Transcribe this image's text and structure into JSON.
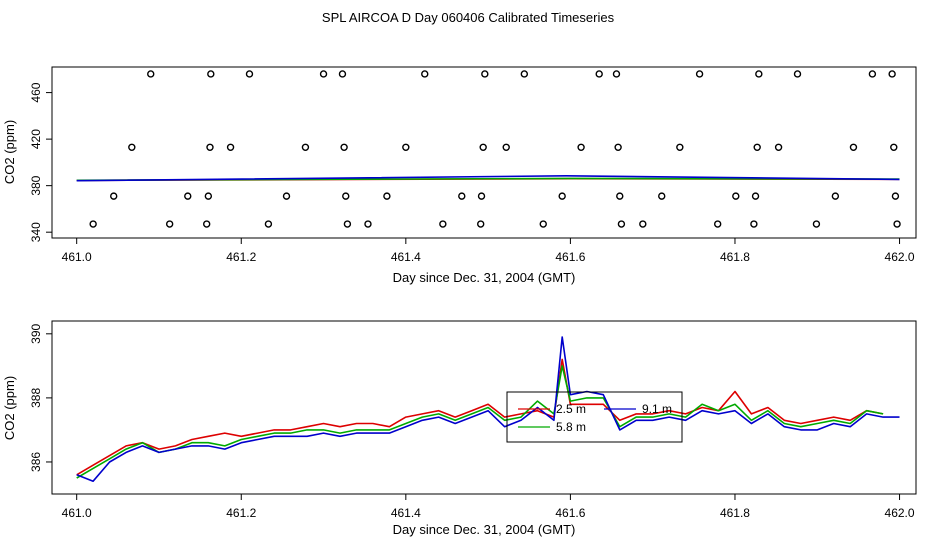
{
  "title": "SPL AIRCOA D  Day 060406  Calibrated Timeseries",
  "chart_data": [
    {
      "type": "scatter",
      "xlabel": "Day since Dec. 31, 2004 (GMT)",
      "ylabel": "CO2 (ppm)",
      "xlim": [
        460.97,
        462.02
      ],
      "ylim": [
        335,
        482
      ],
      "xticks": [
        461.0,
        461.2,
        461.4,
        461.6,
        461.8,
        462.0
      ],
      "xtick_labels": [
        "461.0",
        "461.2",
        "461.4",
        "461.6",
        "461.8",
        "462.0"
      ],
      "yticks": [
        340,
        380,
        420,
        460
      ],
      "ytick_labels": [
        "340",
        "380",
        "420",
        "460"
      ],
      "points": [
        [
          461.02,
          347
        ],
        [
          461.045,
          371
        ],
        [
          461.067,
          413
        ],
        [
          461.09,
          476
        ],
        [
          461.113,
          347
        ],
        [
          461.135,
          371
        ],
        [
          461.158,
          347
        ],
        [
          461.16,
          371
        ],
        [
          461.162,
          413
        ],
        [
          461.163,
          476
        ],
        [
          461.187,
          413
        ],
        [
          461.21,
          476
        ],
        [
          461.233,
          347
        ],
        [
          461.255,
          371
        ],
        [
          461.278,
          413
        ],
        [
          461.3,
          476
        ],
        [
          461.323,
          476
        ],
        [
          461.325,
          413
        ],
        [
          461.327,
          371
        ],
        [
          461.329,
          347
        ],
        [
          461.354,
          347
        ],
        [
          461.377,
          371
        ],
        [
          461.4,
          413
        ],
        [
          461.423,
          476
        ],
        [
          461.445,
          347
        ],
        [
          461.468,
          371
        ],
        [
          461.491,
          347
        ],
        [
          461.492,
          371
        ],
        [
          461.494,
          413
        ],
        [
          461.496,
          476
        ],
        [
          461.522,
          413
        ],
        [
          461.544,
          476
        ],
        [
          461.567,
          347
        ],
        [
          461.59,
          371
        ],
        [
          461.613,
          413
        ],
        [
          461.635,
          476
        ],
        [
          461.656,
          476
        ],
        [
          461.658,
          413
        ],
        [
          461.66,
          371
        ],
        [
          461.662,
          347
        ],
        [
          461.688,
          347
        ],
        [
          461.711,
          371
        ],
        [
          461.733,
          413
        ],
        [
          461.757,
          476
        ],
        [
          461.779,
          347
        ],
        [
          461.801,
          371
        ],
        [
          461.823,
          347
        ],
        [
          461.825,
          371
        ],
        [
          461.827,
          413
        ],
        [
          461.829,
          476
        ],
        [
          461.853,
          413
        ],
        [
          461.876,
          476
        ],
        [
          461.899,
          347
        ],
        [
          461.922,
          371
        ],
        [
          461.944,
          413
        ],
        [
          461.967,
          476
        ],
        [
          461.991,
          476
        ],
        [
          461.993,
          413
        ],
        [
          461.995,
          371
        ],
        [
          461.997,
          347
        ]
      ],
      "series": [
        {
          "name": "red",
          "color": "#dd0000",
          "x": [
            461.0,
            461.6,
            462.0
          ],
          "y": [
            384.5,
            386.0,
            385.5
          ]
        },
        {
          "name": "green",
          "color": "#00aa00",
          "x": [
            461.0,
            461.6,
            462.0
          ],
          "y": [
            384.6,
            386.2,
            385.6
          ]
        },
        {
          "name": "blue",
          "color": "#0000cc",
          "x": [
            461.0,
            461.595,
            462.0
          ],
          "y": [
            384.3,
            388.5,
            385.4
          ]
        }
      ]
    },
    {
      "type": "line",
      "xlabel": "Day since Dec. 31, 2004 (GMT)",
      "ylabel": "CO2 (ppm)",
      "xlim": [
        460.97,
        462.02
      ],
      "ylim": [
        385.0,
        390.4
      ],
      "xticks": [
        461.0,
        461.2,
        461.4,
        461.6,
        461.8,
        462.0
      ],
      "xtick_labels": [
        "461.0",
        "461.2",
        "461.4",
        "461.6",
        "461.8",
        "462.0"
      ],
      "yticks": [
        386,
        388,
        390
      ],
      "ytick_labels": [
        "386",
        "388",
        "390"
      ],
      "legend": {
        "position": "center",
        "entries": [
          {
            "label": "2.5 m",
            "color": "#dd0000"
          },
          {
            "label": "5.8 m",
            "color": "#00aa00"
          },
          {
            "label": "9.1 m",
            "color": "#0000cc"
          }
        ]
      },
      "series": [
        {
          "name": "2.5 m",
          "color": "#dd0000",
          "x": [
            461.0,
            461.02,
            461.04,
            461.06,
            461.08,
            461.1,
            461.12,
            461.14,
            461.16,
            461.18,
            461.2,
            461.22,
            461.24,
            461.26,
            461.28,
            461.3,
            461.32,
            461.34,
            461.36,
            461.38,
            461.4,
            461.42,
            461.44,
            461.46,
            461.48,
            461.5,
            461.52,
            461.54,
            461.56,
            461.58,
            461.59,
            461.6,
            461.62,
            461.64,
            461.66,
            461.68,
            461.7,
            461.72,
            461.74,
            461.76,
            461.78,
            461.8,
            461.82,
            461.84,
            461.86,
            461.88,
            461.9,
            461.92,
            461.94,
            461.96,
            461.98
          ],
          "y": [
            385.6,
            385.9,
            386.2,
            386.5,
            386.6,
            386.4,
            386.5,
            386.7,
            386.8,
            386.9,
            386.8,
            386.9,
            387.0,
            387.0,
            387.1,
            387.2,
            387.1,
            387.2,
            387.2,
            387.1,
            387.4,
            387.5,
            387.6,
            387.4,
            387.6,
            387.8,
            387.4,
            387.5,
            387.6,
            387.4,
            389.2,
            387.8,
            387.8,
            387.8,
            387.3,
            387.5,
            387.5,
            387.6,
            387.5,
            387.7,
            387.6,
            388.2,
            387.5,
            387.7,
            387.3,
            387.2,
            387.3,
            387.4,
            387.3,
            387.6,
            387.5
          ]
        },
        {
          "name": "5.8 m",
          "color": "#00aa00",
          "x": [
            461.0,
            461.02,
            461.04,
            461.06,
            461.08,
            461.1,
            461.12,
            461.14,
            461.16,
            461.18,
            461.2,
            461.22,
            461.24,
            461.26,
            461.28,
            461.3,
            461.32,
            461.34,
            461.36,
            461.38,
            461.4,
            461.42,
            461.44,
            461.46,
            461.48,
            461.5,
            461.52,
            461.54,
            461.56,
            461.58,
            461.59,
            461.6,
            461.62,
            461.64,
            461.66,
            461.68,
            461.7,
            461.72,
            461.74,
            461.76,
            461.78,
            461.8,
            461.82,
            461.84,
            461.86,
            461.88,
            461.9,
            461.92,
            461.94,
            461.96,
            461.98
          ],
          "y": [
            385.5,
            385.8,
            386.1,
            386.4,
            386.6,
            386.3,
            386.4,
            386.6,
            386.6,
            386.5,
            386.7,
            386.8,
            386.9,
            386.9,
            387.0,
            387.0,
            386.9,
            387.0,
            387.0,
            387.0,
            387.2,
            387.4,
            387.5,
            387.3,
            387.5,
            387.7,
            387.3,
            387.4,
            387.9,
            387.5,
            389.0,
            387.9,
            388.0,
            388.0,
            387.1,
            387.4,
            387.4,
            387.5,
            387.4,
            387.8,
            387.6,
            387.8,
            387.3,
            387.6,
            387.2,
            387.1,
            387.2,
            387.3,
            387.2,
            387.6,
            387.5
          ]
        },
        {
          "name": "9.1 m",
          "color": "#0000cc",
          "x": [
            461.0,
            461.02,
            461.04,
            461.06,
            461.08,
            461.1,
            461.12,
            461.14,
            461.16,
            461.18,
            461.2,
            461.22,
            461.24,
            461.26,
            461.28,
            461.3,
            461.32,
            461.34,
            461.36,
            461.38,
            461.4,
            461.42,
            461.44,
            461.46,
            461.48,
            461.5,
            461.52,
            461.54,
            461.56,
            461.58,
            461.59,
            461.6,
            461.62,
            461.64,
            461.66,
            461.68,
            461.7,
            461.72,
            461.74,
            461.76,
            461.78,
            461.8,
            461.82,
            461.84,
            461.86,
            461.88,
            461.9,
            461.92,
            461.94,
            461.96,
            461.98,
            462.0
          ],
          "y": [
            385.6,
            385.4,
            386.0,
            386.3,
            386.5,
            386.3,
            386.4,
            386.5,
            386.5,
            386.4,
            386.6,
            386.7,
            386.8,
            386.8,
            386.8,
            386.9,
            386.8,
            386.9,
            386.9,
            386.9,
            387.1,
            387.3,
            387.4,
            387.2,
            387.4,
            387.6,
            387.1,
            387.3,
            387.7,
            387.3,
            389.9,
            388.1,
            388.2,
            388.1,
            387.0,
            387.3,
            387.3,
            387.4,
            387.3,
            387.6,
            387.5,
            387.6,
            387.2,
            387.5,
            387.1,
            387.0,
            387.0,
            387.2,
            387.1,
            387.5,
            387.4,
            387.4
          ]
        }
      ]
    }
  ]
}
